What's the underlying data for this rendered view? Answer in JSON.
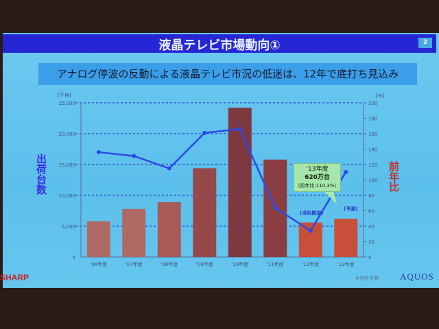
{
  "slide": {
    "title": "液晶テレビ市場動向①",
    "page_number": "2",
    "subtitle": "アナログ停波の反動による液晶テレビ市況の低迷は、12年で底打ち見込み",
    "footnote": "※当社予測",
    "logo_left": "SHARP",
    "logo_right": "AQUOS"
  },
  "chart_data": {
    "type": "bar",
    "categories": [
      "'06年度",
      "'07年度",
      "'08年度",
      "'09年度",
      "'10年度",
      "'11年度",
      "'12年度",
      "'13年度"
    ],
    "series": [
      {
        "name": "出荷台数",
        "type": "bar",
        "axis": "left",
        "values": [
          5800,
          7800,
          8900,
          14400,
          24200,
          15800,
          5600,
          6200
        ],
        "colors": [
          "#b06a66",
          "#b06a66",
          "#a85a58",
          "#96494b",
          "#7e3840",
          "#8a3e42",
          "#c8503a",
          "#c8503a"
        ]
      },
      {
        "name": "前年比",
        "type": "line",
        "axis": "right",
        "values": [
          136,
          131,
          115,
          161,
          166,
          64,
          34,
          110.3
        ],
        "color": "#2a4ae8"
      }
    ],
    "ylabel_left": "出荷台数",
    "ylabel_right": "前年比",
    "unit_left": "[千台]",
    "unit_right": "[%]",
    "ylim_left": [
      0,
      25000
    ],
    "ylim_right": [
      0,
      200
    ],
    "yticks_left": [
      "0",
      "5,000",
      "10,000",
      "15,000",
      "20,000",
      "25,000"
    ],
    "yticks_right": [
      "0",
      "20",
      "40",
      "60",
      "80",
      "100",
      "120",
      "140",
      "160",
      "180",
      "200"
    ],
    "grid": true,
    "annotations": {
      "callout_line1": "'13年度",
      "callout_line2": "620万台",
      "callout_line3": "(前年比:110.3%)",
      "estimate_note": "(当社推定)",
      "forecast_note": "(予測)"
    }
  }
}
